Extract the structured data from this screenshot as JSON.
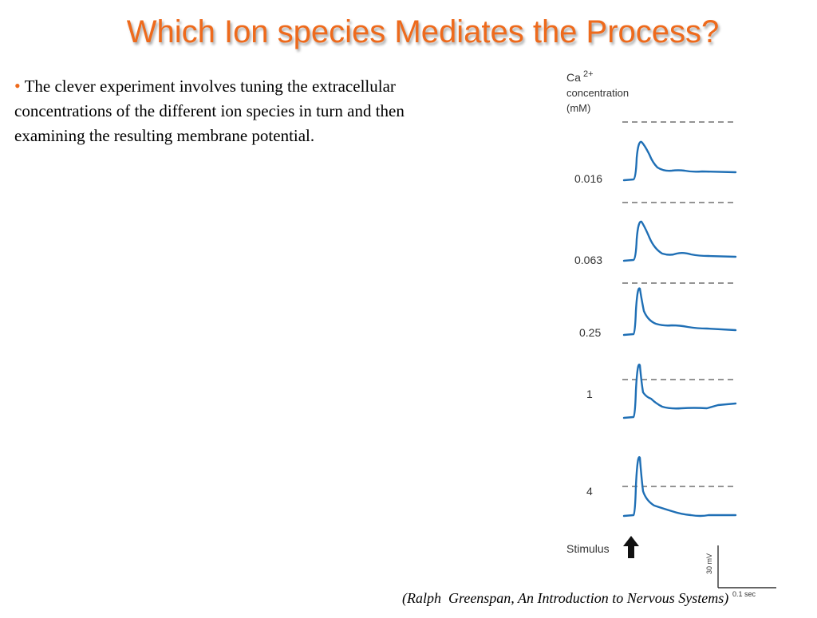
{
  "title": "Which Ion species Mediates the Process?",
  "body": {
    "bullet": "•",
    "text": "The clever experiment involves tuning the extracellular concentrations of the different ion species in turn and then examining the resulting membrane potential."
  },
  "figure": {
    "ylabel_line1": "Ca",
    "ylabel_sup": "2+",
    "ylabel_line2": "concentration",
    "ylabel_line3": "(mM)",
    "traces": [
      {
        "concentration": "0.016"
      },
      {
        "concentration": "0.063"
      },
      {
        "concentration": "0.25"
      },
      {
        "concentration": "1"
      },
      {
        "concentration": "4"
      }
    ],
    "stimulus_label": "Stimulus",
    "scale_voltage": "30 mV",
    "scale_time": "0.1 sec",
    "trace_color": "#1f6fb5"
  },
  "citation": "(Ralph  Greenspan, An Introduction to Nervous Systems)"
}
